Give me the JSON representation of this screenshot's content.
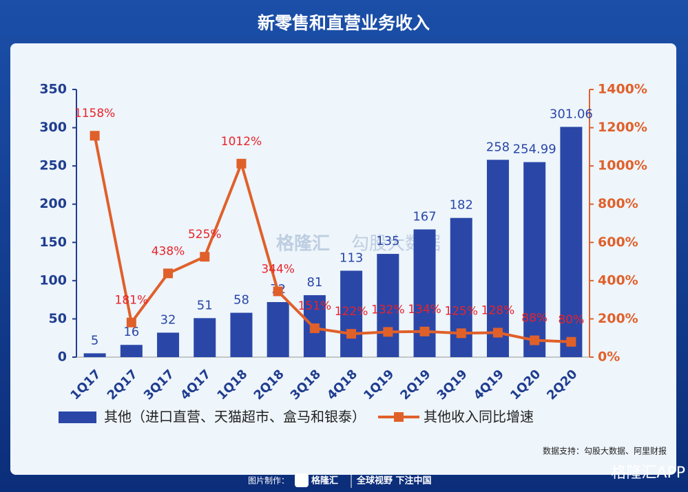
{
  "chart_data": {
    "type": "combo",
    "title": "新零售和直营业务收入",
    "categories": [
      "1Q17",
      "2Q17",
      "3Q17",
      "4Q17",
      "1Q18",
      "2Q18",
      "3Q18",
      "4Q18",
      "1Q19",
      "2Q19",
      "3Q19",
      "4Q19",
      "1Q20",
      "2Q20"
    ],
    "series": [
      {
        "name": "其他（进口直营、天猫超市、盒马和银泰）",
        "type": "bar",
        "color": "#2a47a8",
        "values": [
          5,
          16,
          32,
          51,
          58,
          72,
          81,
          113,
          135,
          167,
          182,
          258,
          254.99,
          301.06
        ]
      },
      {
        "name": "其他收入同比增速",
        "type": "line",
        "axis": "y2",
        "color": "#e0602a",
        "values": [
          1158,
          181,
          438,
          525,
          1012,
          344,
          151,
          122,
          132,
          134,
          125,
          128,
          88,
          80
        ],
        "value_labels": [
          "1158%",
          "181%",
          "438%",
          "525%",
          "1012%",
          "344%",
          "151%",
          "122%",
          "132%",
          "134%",
          "125%",
          "128%",
          "88%",
          "80%"
        ]
      }
    ],
    "ylim": [
      0,
      350
    ],
    "yticks": [
      0,
      50,
      100,
      150,
      200,
      250,
      300,
      350
    ],
    "y2lim": [
      0,
      1400
    ],
    "y2ticks": [
      {
        "value": 0,
        "label": "0%"
      },
      {
        "value": 200,
        "label": "200%"
      },
      {
        "value": 400,
        "label": "400%"
      },
      {
        "value": 600,
        "label": "600%"
      },
      {
        "value": 800,
        "label": "800%"
      },
      {
        "value": 1000,
        "label": "1000%"
      },
      {
        "value": 1200,
        "label": "1200%"
      },
      {
        "value": 1400,
        "label": "1400%"
      }
    ],
    "source": "数据支持：勾股大数据、阿里财报",
    "watermark": [
      "格隆汇",
      "勾股大数据"
    ],
    "footer": {
      "made_by": "图片制作：",
      "brand": "格隆汇",
      "slogan": "全球视野 下注中国",
      "app": "格隆汇APP"
    }
  }
}
